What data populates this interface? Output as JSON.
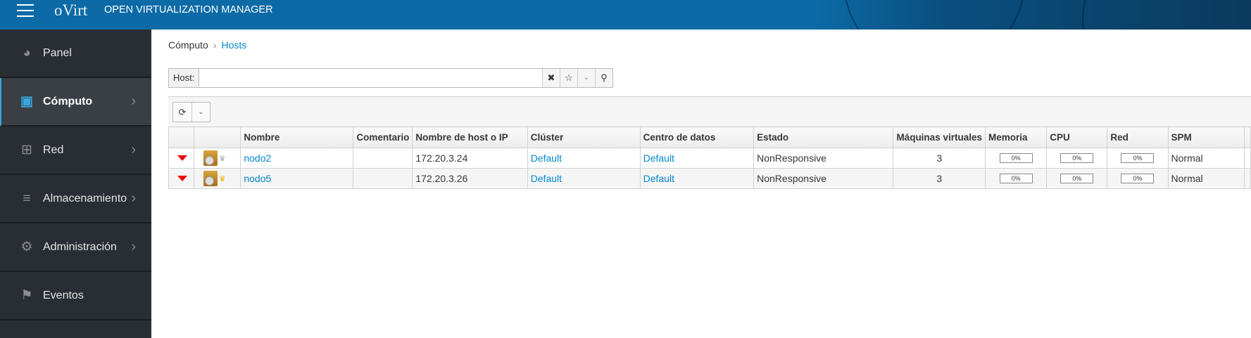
{
  "header": {
    "brand": "oVirt",
    "title": "OPEN VIRTUALIZATION MANAGER"
  },
  "sidebar": {
    "items": [
      {
        "label": "Panel",
        "icon": "dashboard-icon",
        "active": false,
        "chevron": false
      },
      {
        "label": "Cómputo",
        "icon": "cpu-icon",
        "active": true,
        "chevron": true
      },
      {
        "label": "Red",
        "icon": "network-icon",
        "active": false,
        "chevron": true
      },
      {
        "label": "Almacenamiento",
        "icon": "database-icon",
        "active": false,
        "chevron": true
      },
      {
        "label": "Administración",
        "icon": "gear-icon",
        "active": false,
        "chevron": true
      },
      {
        "label": "Eventos",
        "icon": "flag-icon",
        "active": false,
        "chevron": false
      }
    ]
  },
  "breadcrumb": {
    "parent": "Cómputo",
    "current": "Hosts"
  },
  "search": {
    "label": "Host:",
    "value": ""
  },
  "table": {
    "headers": [
      "",
      "",
      "Nombre",
      "Comentario",
      "Nombre de host o IP",
      "Clúster",
      "Centro de datos",
      "Estado",
      "Máquinas virtuales",
      "Memoria",
      "CPU",
      "Red",
      "SPM",
      ""
    ],
    "rows": [
      {
        "name": "nodo2",
        "comment": "",
        "host": "172.20.3.24",
        "cluster": "Default",
        "dc": "Default",
        "status": "NonResponsive",
        "vms": "3",
        "mem": "0%",
        "cpu": "0%",
        "net": "0%",
        "spm": "Normal",
        "crown_color": "#aaaaaa"
      },
      {
        "name": "nodo5",
        "comment": "",
        "host": "172.20.3.26",
        "cluster": "Default",
        "dc": "Default",
        "status": "NonResponsive",
        "vms": "3",
        "mem": "0%",
        "cpu": "0%",
        "net": "0%",
        "spm": "Normal",
        "crown_color": "#f0b400"
      }
    ]
  },
  "colors": {
    "header": "#0c6aa6",
    "sidebar": "#292e34",
    "accent": "#0088ce",
    "status_down": "#e00000"
  }
}
